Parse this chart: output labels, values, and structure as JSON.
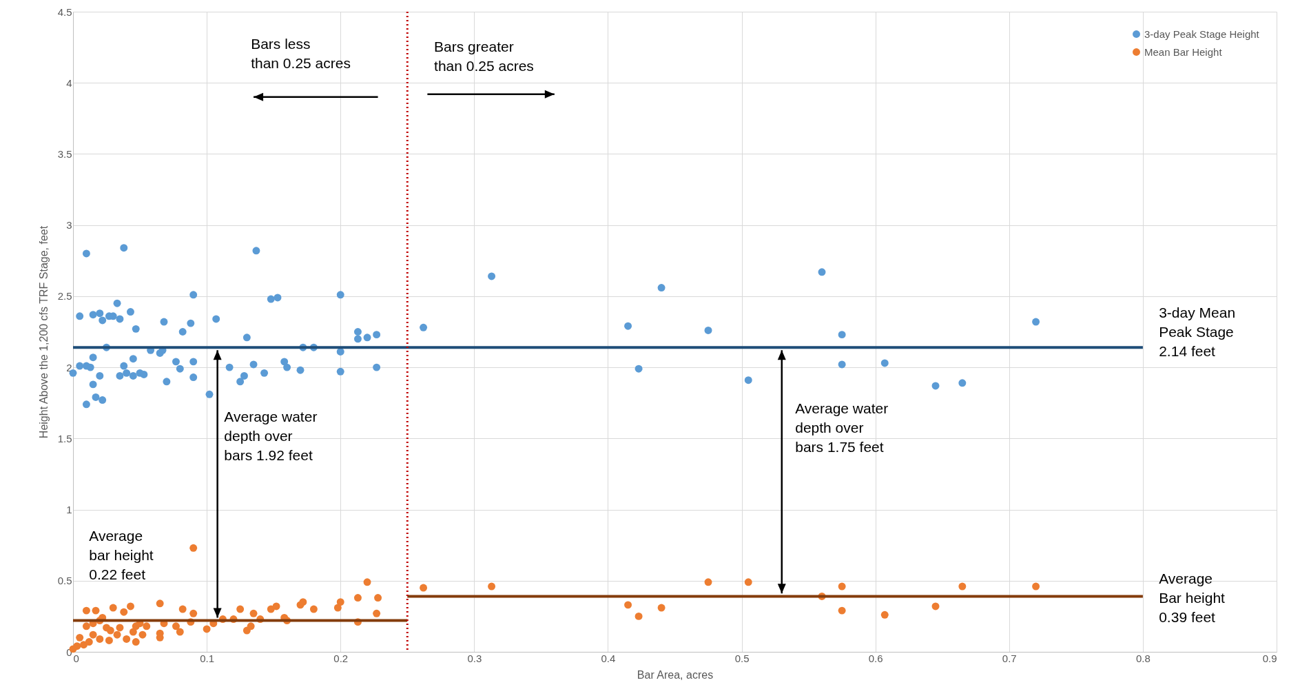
{
  "chart_data": {
    "type": "scatter",
    "xlabel": "Bar Area, acres",
    "ylabel": "Height Above the 1,200 cfs TRF Stage, feet",
    "xlim": [
      0,
      0.9
    ],
    "xticks": [
      0,
      0.1,
      0.2,
      0.3,
      0.4,
      0.5,
      0.6,
      0.7,
      0.8,
      0.9
    ],
    "ylim": [
      0,
      4.5
    ],
    "yticks": [
      0,
      0.5,
      1,
      1.5,
      2,
      2.5,
      3,
      3.5,
      4,
      4.5
    ],
    "grid": true,
    "legend": "top right",
    "marker": "circle",
    "series": [
      {
        "name": "3-day Peak Stage Height",
        "color": "#5b9bd5",
        "x": [
          0,
          0.005,
          0.005,
          0.01,
          0.01,
          0.01,
          0.013,
          0.015,
          0.015,
          0.015,
          0.017,
          0.02,
          0.02,
          0.022,
          0.022,
          0.025,
          0.027,
          0.03,
          0.033,
          0.035,
          0.035,
          0.038,
          0.038,
          0.04,
          0.043,
          0.045,
          0.045,
          0.047,
          0.05,
          0.053,
          0.058,
          0.065,
          0.067,
          0.068,
          0.07,
          0.077,
          0.08,
          0.082,
          0.088,
          0.09,
          0.09,
          0.09,
          0.102,
          0.107,
          0.117,
          0.125,
          0.128,
          0.13,
          0.135,
          0.137,
          0.143,
          0.148,
          0.153,
          0.158,
          0.16,
          0.17,
          0.172,
          0.18,
          0.2,
          0.2,
          0.2,
          0.213,
          0.213,
          0.22,
          0.227,
          0.227,
          0.262,
          0.313,
          0.415,
          0.423,
          0.44,
          0.475,
          0.505,
          0.56,
          0.575,
          0.575,
          0.607,
          0.645,
          0.665,
          0.72
        ],
        "values": [
          1.96,
          2.36,
          2.01,
          2.8,
          1.74,
          2.01,
          2.0,
          1.88,
          2.07,
          2.37,
          1.79,
          1.94,
          2.38,
          1.77,
          2.33,
          2.14,
          2.36,
          2.36,
          2.45,
          2.34,
          1.94,
          2.01,
          2.84,
          1.96,
          2.39,
          1.94,
          2.06,
          2.27,
          1.96,
          1.95,
          2.12,
          2.1,
          2.12,
          2.32,
          1.9,
          2.04,
          1.99,
          2.25,
          2.31,
          2.51,
          1.93,
          2.04,
          1.81,
          2.34,
          2.0,
          1.9,
          1.94,
          2.21,
          2.02,
          2.82,
          1.96,
          2.48,
          2.49,
          2.04,
          2.0,
          1.98,
          2.14,
          2.14,
          2.51,
          2.11,
          1.97,
          2.25,
          2.2,
          2.21,
          2.23,
          2.0,
          2.28,
          2.64,
          2.29,
          1.99,
          2.56,
          2.26,
          1.91,
          2.67,
          2.23,
          2.02,
          2.03,
          1.87,
          1.89,
          2.32
        ]
      },
      {
        "name": "Mean Bar Height",
        "color": "#ed7d31",
        "x": [
          0,
          0.003,
          0.005,
          0.008,
          0.01,
          0.01,
          0.012,
          0.015,
          0.015,
          0.017,
          0.02,
          0.02,
          0.022,
          0.025,
          0.027,
          0.028,
          0.03,
          0.033,
          0.035,
          0.038,
          0.04,
          0.043,
          0.045,
          0.047,
          0.047,
          0.05,
          0.052,
          0.055,
          0.065,
          0.065,
          0.065,
          0.068,
          0.077,
          0.08,
          0.082,
          0.09,
          0.088,
          0.09,
          0.1,
          0.105,
          0.112,
          0.12,
          0.125,
          0.13,
          0.133,
          0.135,
          0.14,
          0.148,
          0.152,
          0.158,
          0.16,
          0.17,
          0.172,
          0.18,
          0.198,
          0.2,
          0.213,
          0.213,
          0.22,
          0.227,
          0.228,
          0.262,
          0.313,
          0.415,
          0.423,
          0.44,
          0.475,
          0.505,
          0.56,
          0.575,
          0.575,
          0.607,
          0.645,
          0.665,
          0.72
        ],
        "values": [
          0.02,
          0.04,
          0.1,
          0.05,
          0.29,
          0.18,
          0.07,
          0.2,
          0.12,
          0.29,
          0.22,
          0.09,
          0.24,
          0.17,
          0.08,
          0.15,
          0.31,
          0.12,
          0.17,
          0.28,
          0.09,
          0.32,
          0.14,
          0.07,
          0.18,
          0.2,
          0.12,
          0.18,
          0.34,
          0.13,
          0.1,
          0.2,
          0.18,
          0.14,
          0.3,
          0.73,
          0.21,
          0.27,
          0.16,
          0.2,
          0.23,
          0.23,
          0.3,
          0.15,
          0.18,
          0.27,
          0.23,
          0.3,
          0.32,
          0.24,
          0.22,
          0.33,
          0.35,
          0.3,
          0.31,
          0.35,
          0.38,
          0.21,
          0.49,
          0.27,
          0.38,
          0.45,
          0.46,
          0.33,
          0.25,
          0.31,
          0.49,
          0.49,
          0.39,
          0.46,
          0.29,
          0.26,
          0.32,
          0.46,
          0.46
        ]
      },
      {
        "type": "line",
        "marker": "none",
        "color": "#1f4e79",
        "x": [
          0,
          0.8
        ],
        "values": [
          2.14,
          2.14
        ]
      },
      {
        "type": "line",
        "marker": "none",
        "color": "#843c0c",
        "x": [
          0,
          0.25
        ],
        "values": [
          0.22,
          0.22
        ]
      },
      {
        "type": "line",
        "marker": "none",
        "color": "#843c0c",
        "x": [
          0.25,
          0.8
        ],
        "values": [
          0.39,
          0.39
        ]
      }
    ],
    "ref_lines": [
      {
        "axis": "x",
        "value": 0.25,
        "color": "#c00000",
        "line_style": "dotted"
      }
    ],
    "annotations": [
      "Bars less\nthan 0.25 acres",
      "Bars greater\nthan 0.25 acres",
      "Average water\ndepth over\nbars 1.92 feet",
      "Average water\ndepth over\nbars 1.75 feet",
      "Average\nbar height\n0.22 feet",
      "3-day Mean\nPeak Stage\n2.14 feet",
      "Average\nBar height\n0.39 feet"
    ]
  }
}
